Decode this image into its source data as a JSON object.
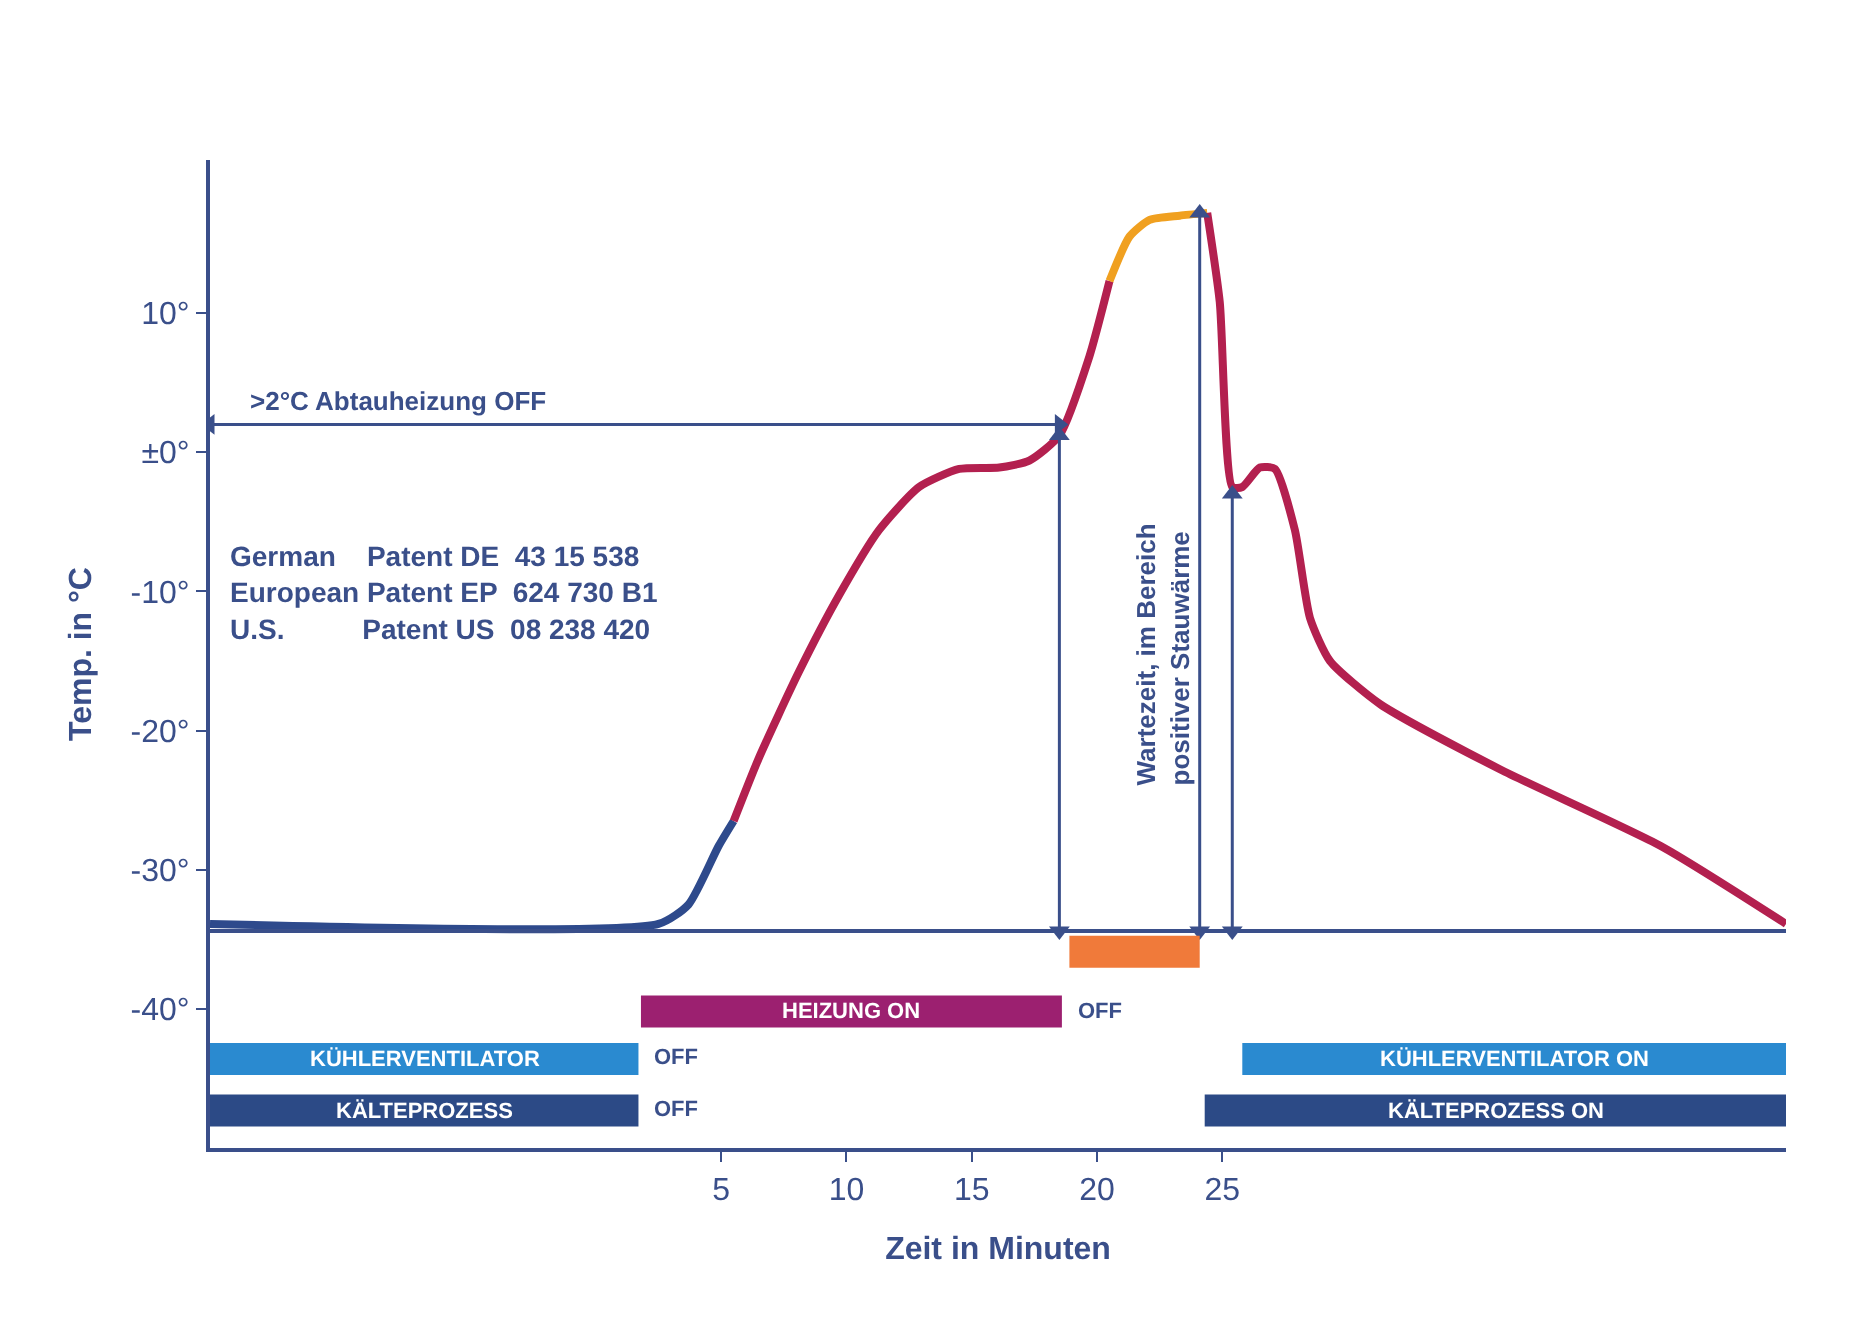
{
  "chart_data": {
    "type": "line",
    "xlabel": "Zeit in Minuten",
    "ylabel": "Temp. in °C",
    "xlim": [
      -15.4,
      47.5
    ],
    "ylim": [
      -50,
      21
    ],
    "xticks": [
      5,
      10,
      15,
      20,
      25
    ],
    "yticks": [
      {
        "value": 10,
        "label": "10°"
      },
      {
        "value": 0,
        "label": "±0°"
      },
      {
        "value": -10,
        "label": "-10°"
      },
      {
        "value": -20,
        "label": "-20°"
      },
      {
        "value": -30,
        "label": "-30°"
      },
      {
        "value": -40,
        "label": "-40°"
      }
    ],
    "series": [
      {
        "color": "#2e4a8c",
        "x": [
          -15.4,
          2.5,
          3.7,
          4.9,
          5.5
        ],
        "values": [
          -33.9,
          -33.9,
          -32.5,
          -28.3,
          -26.5
        ]
      },
      {
        "color": "#b3204f",
        "x": [
          5.5,
          6.5,
          8.1,
          9.7,
          11.3,
          12.9,
          14.5,
          16.1,
          17.3,
          18.5,
          19.7,
          20.5
        ],
        "values": [
          -26.5,
          -22,
          -15.8,
          -10.3,
          -5.6,
          -2.5,
          -1.2,
          -1.1,
          -0.6,
          1.2,
          6.9,
          12.3
        ]
      },
      {
        "color": "#f0a020",
        "x": [
          20.5,
          21.3,
          22.1,
          23.3,
          24.4
        ],
        "values": [
          12.3,
          15.5,
          16.7,
          17,
          17.2
        ]
      },
      {
        "color": "#b3204f",
        "x": [
          24.4,
          24.9,
          25.4,
          25.8,
          26.5,
          27.1,
          27.9,
          28.5,
          29.3,
          31.3,
          36.1,
          42.5,
          47.5
        ],
        "values": [
          17.2,
          10.8,
          -2.5,
          -2.5,
          -1.1,
          -1.2,
          -5.6,
          -11.9,
          -15,
          -18.1,
          -22.8,
          -28.3,
          -33.9
        ]
      },
      {
        "color": "#3a4f8a",
        "marker": "triangle",
        "x": [
          -15.4,
          18.5
        ],
        "values": [
          2,
          2
        ]
      },
      {
        "color": "#3a4f8a",
        "marker": "triangle",
        "x": [
          18.5,
          18.5
        ],
        "values": [
          1.2,
          -34.4
        ]
      },
      {
        "color": "#3a4f8a",
        "marker": "triangle",
        "x": [
          24.1,
          24.1
        ],
        "values": [
          17.2,
          -34.4
        ]
      },
      {
        "color": "#3a4f8a",
        "marker": "triangle",
        "x": [
          25.4,
          25.4
        ],
        "values": [
          -34.4,
          -3
        ]
      },
      {
        "color": "#f07a3a",
        "x": [
          18.9,
          24.1
        ],
        "values": [
          -35.9,
          -35.9
        ]
      },
      {
        "name": "HEIZUNG ON",
        "color": "#9c2070",
        "x": [
          1.8,
          18.6
        ],
        "values": [
          -40.2,
          -40.2
        ]
      },
      {
        "name": "KÜHLERVENTILATOR",
        "color": "#2a8ad0",
        "x": [
          -15.4,
          1.7
        ],
        "values": [
          -43.6,
          -43.6
        ]
      },
      {
        "name": "KÜHLERVENTILATOR ON",
        "color": "#2a8ad0",
        "x": [
          25.8,
          47.5
        ],
        "values": [
          -43.6,
          -43.6
        ]
      },
      {
        "name": "KÄLTEPROZESS",
        "color": "#2c4a86",
        "x": [
          -15.4,
          1.7
        ],
        "values": [
          -47.3,
          -47.3
        ]
      },
      {
        "name": "KÄLTEPROZESS ON",
        "color": "#2c4a86",
        "x": [
          24.3,
          47.5
        ],
        "values": [
          -47.3,
          -47.3
        ]
      }
    ],
    "ref_lines": [
      {
        "axis": "y",
        "value": -34.4,
        "color": "#3a4f8a"
      }
    ],
    "annotations": [
      {
        "text": ">2°C Abtauheizung OFF",
        "x": -14,
        "y": 2
      },
      "German    Patent DE  43 15 538\nEuropean Patent EP  624 730 B1\nU.S.          Patent US  08 238 420",
      "Wartezeit, im Bereich\npositiver Stauwärme",
      {
        "text": "OFF",
        "x": 18.6,
        "y": -40.2
      },
      {
        "text": "OFF",
        "x": 1.7,
        "y": -43.6
      },
      {
        "text": "OFF",
        "x": 1.7,
        "y": -47.3
      }
    ]
  }
}
